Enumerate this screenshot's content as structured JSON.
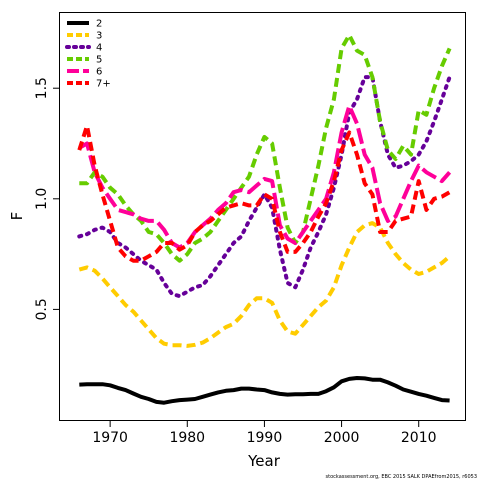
{
  "chart_data": {
    "type": "line",
    "title": "",
    "xlabel": "Year",
    "ylabel": "F",
    "xlim": [
      1963.5,
      2016.0
    ],
    "ylim": [
      0.0,
      1.84
    ],
    "x_ticks": [
      1970,
      1980,
      1990,
      2000,
      2010
    ],
    "y_ticks": [
      0.5,
      1.0,
      1.5
    ],
    "y_tick_labels": [
      "0.5",
      "1.0",
      "1.5"
    ],
    "grid": false,
    "legend_position": "top-left",
    "footer": "stockassessment.org, EBC 2015 SALK DPAEfrom2015, r6053",
    "series": [
      {
        "name": "2",
        "color": "#000000",
        "dash": "solid",
        "x": [
          1966,
          1967,
          1968,
          1969,
          1970,
          1971,
          1972,
          1973,
          1974,
          1975,
          1976,
          1977,
          1978,
          1979,
          1980,
          1981,
          1982,
          1983,
          1984,
          1985,
          1986,
          1987,
          1988,
          1989,
          1990,
          1991,
          1992,
          1993,
          1994,
          1995,
          1996,
          1997,
          1998,
          1999,
          2000,
          2001,
          2002,
          2003,
          2004,
          2005,
          2006,
          2007,
          2008,
          2009,
          2010,
          2011,
          2012,
          2013,
          2014
        ],
        "y": [
          0.16,
          0.162,
          0.162,
          0.162,
          0.157,
          0.145,
          0.135,
          0.12,
          0.105,
          0.095,
          0.082,
          0.078,
          0.085,
          0.09,
          0.092,
          0.095,
          0.105,
          0.115,
          0.125,
          0.132,
          0.135,
          0.142,
          0.142,
          0.138,
          0.135,
          0.125,
          0.118,
          0.115,
          0.116,
          0.116,
          0.118,
          0.118,
          0.13,
          0.148,
          0.175,
          0.186,
          0.19,
          0.188,
          0.182,
          0.182,
          0.17,
          0.155,
          0.138,
          0.128,
          0.118,
          0.11,
          0.1,
          0.09,
          0.088
        ]
      },
      {
        "name": "3",
        "color": "#ffcc00",
        "dash": "dashed",
        "x": [
          1966,
          1967,
          1968,
          1969,
          1970,
          1971,
          1972,
          1973,
          1974,
          1975,
          1976,
          1977,
          1978,
          1979,
          1980,
          1981,
          1982,
          1983,
          1984,
          1985,
          1986,
          1987,
          1988,
          1989,
          1990,
          1991,
          1992,
          1993,
          1994,
          1995,
          1996,
          1997,
          1998,
          1999,
          2000,
          2001,
          2002,
          2003,
          2004,
          2005,
          2006,
          2007,
          2008,
          2009,
          2010,
          2011,
          2012,
          2013,
          2014
        ],
        "y": [
          0.68,
          0.69,
          0.675,
          0.64,
          0.6,
          0.56,
          0.52,
          0.49,
          0.45,
          0.41,
          0.37,
          0.345,
          0.338,
          0.338,
          0.335,
          0.34,
          0.35,
          0.37,
          0.395,
          0.42,
          0.435,
          0.47,
          0.52,
          0.55,
          0.55,
          0.53,
          0.45,
          0.4,
          0.39,
          0.43,
          0.47,
          0.51,
          0.54,
          0.6,
          0.7,
          0.78,
          0.85,
          0.88,
          0.89,
          0.87,
          0.8,
          0.75,
          0.71,
          0.68,
          0.66,
          0.67,
          0.69,
          0.71,
          0.74
        ]
      },
      {
        "name": "4",
        "color": "#660099",
        "dash": "dotted",
        "x": [
          1966,
          1967,
          1968,
          1969,
          1970,
          1971,
          1972,
          1973,
          1974,
          1975,
          1976,
          1977,
          1978,
          1979,
          1980,
          1981,
          1982,
          1983,
          1984,
          1985,
          1986,
          1987,
          1988,
          1989,
          1990,
          1991,
          1992,
          1993,
          1994,
          1995,
          1996,
          1997,
          1998,
          1999,
          2000,
          2001,
          2002,
          2003,
          2004,
          2005,
          2006,
          2007,
          2008,
          2009,
          2010,
          2011,
          2012,
          2013,
          2014
        ],
        "y": [
          0.83,
          0.84,
          0.86,
          0.87,
          0.85,
          0.8,
          0.78,
          0.75,
          0.72,
          0.7,
          0.68,
          0.62,
          0.57,
          0.56,
          0.58,
          0.6,
          0.61,
          0.65,
          0.7,
          0.75,
          0.8,
          0.83,
          0.9,
          0.96,
          1.02,
          0.96,
          0.77,
          0.62,
          0.6,
          0.68,
          0.78,
          0.85,
          0.93,
          1.05,
          1.2,
          1.39,
          1.45,
          1.55,
          1.55,
          1.35,
          1.2,
          1.14,
          1.15,
          1.17,
          1.2,
          1.26,
          1.35,
          1.45,
          1.55
        ]
      },
      {
        "name": "5",
        "color": "#66cc00",
        "dash": "dashed",
        "x": [
          1966,
          1967,
          1968,
          1969,
          1970,
          1971,
          1972,
          1973,
          1974,
          1975,
          1976,
          1977,
          1978,
          1979,
          1980,
          1981,
          1982,
          1983,
          1984,
          1985,
          1986,
          1987,
          1988,
          1989,
          1990,
          1991,
          1992,
          1993,
          1994,
          1995,
          1996,
          1997,
          1998,
          1999,
          2000,
          2001,
          2002,
          2003,
          2004,
          2005,
          2006,
          2007,
          2008,
          2009,
          2010,
          2011,
          2012,
          2013,
          2014
        ],
        "y": [
          1.07,
          1.07,
          1.12,
          1.1,
          1.05,
          1.02,
          0.97,
          0.93,
          0.9,
          0.85,
          0.84,
          0.8,
          0.75,
          0.72,
          0.75,
          0.8,
          0.82,
          0.85,
          0.9,
          0.95,
          1.0,
          1.05,
          1.1,
          1.2,
          1.28,
          1.25,
          1.05,
          0.87,
          0.8,
          0.85,
          1.0,
          1.15,
          1.32,
          1.45,
          1.68,
          1.74,
          1.67,
          1.65,
          1.55,
          1.35,
          1.22,
          1.18,
          1.24,
          1.2,
          1.4,
          1.38,
          1.5,
          1.6,
          1.68
        ]
      },
      {
        "name": "6",
        "color": "#ff0099",
        "dash": "longdash",
        "x": [
          1966,
          1967,
          1968,
          1969,
          1970,
          1971,
          1972,
          1973,
          1974,
          1975,
          1976,
          1977,
          1978,
          1979,
          1980,
          1981,
          1982,
          1983,
          1984,
          1985,
          1986,
          1987,
          1988,
          1989,
          1990,
          1991,
          1992,
          1993,
          1994,
          1995,
          1996,
          1997,
          1998,
          1999,
          2000,
          2001,
          2002,
          2003,
          2004,
          2005,
          2006,
          2007,
          2008,
          2009,
          2010,
          2011,
          2012,
          2013,
          2014
        ],
        "y": [
          1.23,
          1.25,
          1.12,
          1.05,
          1.0,
          0.95,
          0.94,
          0.93,
          0.91,
          0.9,
          0.9,
          0.86,
          0.8,
          0.78,
          0.8,
          0.85,
          0.88,
          0.91,
          0.95,
          0.98,
          1.03,
          1.04,
          1.03,
          1.06,
          1.09,
          1.08,
          0.88,
          0.82,
          0.8,
          0.85,
          0.9,
          0.95,
          1.0,
          1.12,
          1.3,
          1.42,
          1.34,
          1.2,
          1.14,
          0.98,
          0.9,
          0.92,
          1.0,
          1.08,
          1.15,
          1.12,
          1.1,
          1.08,
          1.12
        ]
      },
      {
        "name": "7+",
        "color": "#ff0000",
        "dash": "dashed",
        "x": [
          1966,
          1967,
          1968,
          1969,
          1970,
          1971,
          1972,
          1973,
          1974,
          1975,
          1976,
          1977,
          1978,
          1979,
          1980,
          1981,
          1982,
          1983,
          1984,
          1985,
          1986,
          1987,
          1988,
          1989,
          1990,
          1991,
          1992,
          1993,
          1994,
          1995,
          1996,
          1997,
          1998,
          1999,
          2000,
          2001,
          2002,
          2003,
          2004,
          2005,
          2006,
          2007,
          2008,
          2009,
          2010,
          2011,
          2012,
          2013,
          2014
        ],
        "y": [
          1.22,
          1.33,
          1.15,
          1.02,
          0.9,
          0.78,
          0.74,
          0.72,
          0.72,
          0.74,
          0.76,
          0.8,
          0.8,
          0.77,
          0.79,
          0.85,
          0.88,
          0.9,
          0.93,
          0.96,
          0.97,
          0.98,
          0.97,
          0.97,
          1.02,
          1.0,
          0.85,
          0.76,
          0.76,
          0.8,
          0.85,
          0.92,
          0.98,
          1.08,
          1.22,
          1.3,
          1.2,
          1.07,
          1.02,
          0.85,
          0.85,
          0.9,
          0.91,
          0.92,
          1.08,
          0.95,
          1.0,
          1.01,
          1.03
        ]
      }
    ]
  }
}
